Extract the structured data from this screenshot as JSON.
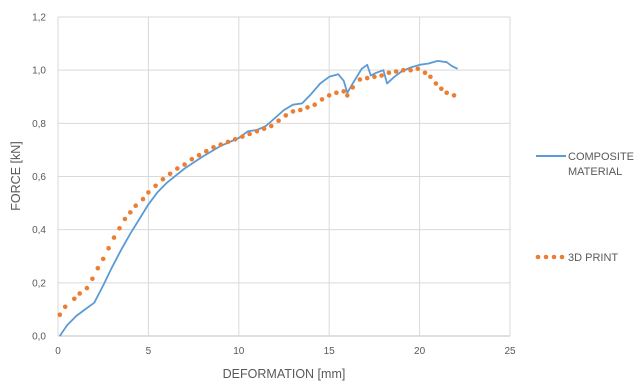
{
  "chart_data": {
    "type": "line",
    "title": "",
    "xlabel": "DEFORMATION [mm]",
    "ylabel": "FORCE [kN]",
    "xlim": [
      0,
      25
    ],
    "ylim": [
      0,
      1.2
    ],
    "x_ticks": [
      0,
      5,
      10,
      15,
      20,
      25
    ],
    "y_ticks": [
      0,
      0.2,
      0.4,
      0.6,
      0.8,
      1.0,
      1.2
    ],
    "x_tick_labels": [
      "0",
      "5",
      "10",
      "15",
      "20",
      "25"
    ],
    "y_tick_labels": [
      "0,0",
      "0,2",
      "0,4",
      "0,6",
      "0,8",
      "1,0",
      "1,2"
    ],
    "grid": true,
    "legend_position": "right",
    "series": [
      {
        "name_lines": [
          "COMPOSITE",
          "MATERIAL"
        ],
        "style": "solid",
        "color": "#5B9BD5",
        "points": [
          [
            0.1,
            0.0
          ],
          [
            0.5,
            0.04
          ],
          [
            1.0,
            0.075
          ],
          [
            1.5,
            0.1
          ],
          [
            2.0,
            0.125
          ],
          [
            2.5,
            0.19
          ],
          [
            3.0,
            0.26
          ],
          [
            3.5,
            0.325
          ],
          [
            4.0,
            0.385
          ],
          [
            4.5,
            0.44
          ],
          [
            5.0,
            0.495
          ],
          [
            5.5,
            0.54
          ],
          [
            6.0,
            0.575
          ],
          [
            7.0,
            0.63
          ],
          [
            8.0,
            0.675
          ],
          [
            9.0,
            0.715
          ],
          [
            10.0,
            0.745
          ],
          [
            10.5,
            0.77
          ],
          [
            11.0,
            0.775
          ],
          [
            11.5,
            0.79
          ],
          [
            12.0,
            0.82
          ],
          [
            12.5,
            0.85
          ],
          [
            13.0,
            0.87
          ],
          [
            13.5,
            0.875
          ],
          [
            14.0,
            0.91
          ],
          [
            14.5,
            0.95
          ],
          [
            15.0,
            0.975
          ],
          [
            15.5,
            0.985
          ],
          [
            15.8,
            0.96
          ],
          [
            16.0,
            0.915
          ],
          [
            16.3,
            0.95
          ],
          [
            16.8,
            1.005
          ],
          [
            17.1,
            1.02
          ],
          [
            17.3,
            0.98
          ],
          [
            17.6,
            0.99
          ],
          [
            18.0,
            1.0
          ],
          [
            18.2,
            0.95
          ],
          [
            18.6,
            0.975
          ],
          [
            19.0,
            0.995
          ],
          [
            19.5,
            1.01
          ],
          [
            20.0,
            1.02
          ],
          [
            20.5,
            1.025
          ],
          [
            21.0,
            1.035
          ],
          [
            21.5,
            1.03
          ],
          [
            21.8,
            1.015
          ],
          [
            22.1,
            1.005
          ]
        ]
      },
      {
        "name": "3D PRINT",
        "style": "dotted",
        "color": "#ED7D31",
        "points": [
          [
            0.1,
            0.08
          ],
          [
            0.4,
            0.11
          ],
          [
            0.9,
            0.14
          ],
          [
            1.2,
            0.16
          ],
          [
            1.6,
            0.18
          ],
          [
            1.9,
            0.215
          ],
          [
            2.2,
            0.255
          ],
          [
            2.5,
            0.29
          ],
          [
            2.8,
            0.33
          ],
          [
            3.1,
            0.37
          ],
          [
            3.4,
            0.405
          ],
          [
            3.7,
            0.44
          ],
          [
            4.0,
            0.465
          ],
          [
            4.3,
            0.49
          ],
          [
            4.7,
            0.515
          ],
          [
            5.0,
            0.54
          ],
          [
            5.4,
            0.565
          ],
          [
            5.8,
            0.59
          ],
          [
            6.2,
            0.61
          ],
          [
            6.6,
            0.63
          ],
          [
            7.0,
            0.645
          ],
          [
            7.4,
            0.665
          ],
          [
            7.8,
            0.68
          ],
          [
            8.2,
            0.695
          ],
          [
            8.6,
            0.71
          ],
          [
            9.0,
            0.72
          ],
          [
            9.4,
            0.73
          ],
          [
            9.8,
            0.74
          ],
          [
            10.2,
            0.75
          ],
          [
            10.6,
            0.76
          ],
          [
            11.0,
            0.77
          ],
          [
            11.4,
            0.78
          ],
          [
            11.8,
            0.79
          ],
          [
            12.2,
            0.81
          ],
          [
            12.6,
            0.83
          ],
          [
            13.0,
            0.845
          ],
          [
            13.4,
            0.85
          ],
          [
            13.8,
            0.86
          ],
          [
            14.2,
            0.87
          ],
          [
            14.6,
            0.89
          ],
          [
            15.0,
            0.905
          ],
          [
            15.4,
            0.915
          ],
          [
            15.8,
            0.92
          ],
          [
            16.0,
            0.905
          ],
          [
            16.3,
            0.935
          ],
          [
            16.7,
            0.965
          ],
          [
            17.1,
            0.97
          ],
          [
            17.5,
            0.975
          ],
          [
            17.9,
            0.98
          ],
          [
            18.3,
            0.99
          ],
          [
            18.7,
            0.995
          ],
          [
            19.1,
            1.0
          ],
          [
            19.5,
            1.0
          ],
          [
            19.9,
            1.005
          ],
          [
            20.3,
            0.99
          ],
          [
            20.6,
            0.975
          ],
          [
            20.9,
            0.95
          ],
          [
            21.2,
            0.93
          ],
          [
            21.5,
            0.915
          ],
          [
            21.9,
            0.905
          ]
        ]
      }
    ]
  }
}
